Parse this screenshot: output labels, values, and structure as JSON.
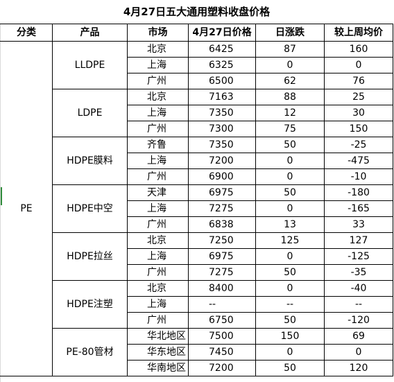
{
  "title": "4月27日五大通用塑料收盘价格",
  "headers": {
    "category": "分类",
    "product": "产品",
    "market": "市场",
    "price": "4月27日价格",
    "daily_change": "日涨跌",
    "weekly_change": "较上周均价"
  },
  "category": "PE",
  "groups": [
    {
      "product": "LLDPE",
      "rows": [
        {
          "market": "北京",
          "price": "6425",
          "daily": "87",
          "weekly": "160"
        },
        {
          "market": "上海",
          "price": "6325",
          "daily": "0",
          "weekly": "0"
        },
        {
          "market": "广州",
          "price": "6500",
          "daily": "62",
          "weekly": "76"
        }
      ]
    },
    {
      "product": "LDPE",
      "rows": [
        {
          "market": "北京",
          "price": "7163",
          "daily": "88",
          "weekly": "25"
        },
        {
          "market": "上海",
          "price": "7350",
          "daily": "12",
          "weekly": "30"
        },
        {
          "market": "广州",
          "price": "7300",
          "daily": "75",
          "weekly": "150"
        }
      ]
    },
    {
      "product": "HDPE膜料",
      "rows": [
        {
          "market": "齐鲁",
          "price": "7350",
          "daily": "50",
          "weekly": "-25"
        },
        {
          "market": "上海",
          "price": "7200",
          "daily": "0",
          "weekly": "-475"
        },
        {
          "market": "广州",
          "price": "6900",
          "daily": "0",
          "weekly": "-10"
        }
      ]
    },
    {
      "product": "HDPE中空",
      "rows": [
        {
          "market": "天津",
          "price": "6975",
          "daily": "50",
          "weekly": "-180"
        },
        {
          "market": "上海",
          "price": "7275",
          "daily": "0",
          "weekly": "-165"
        },
        {
          "market": "广州",
          "price": "6838",
          "daily": "13",
          "weekly": "33"
        }
      ]
    },
    {
      "product": "HDPE拉丝",
      "rows": [
        {
          "market": "北京",
          "price": "7250",
          "daily": "125",
          "weekly": "127"
        },
        {
          "market": "上海",
          "price": "6975",
          "daily": "0",
          "weekly": "-125"
        },
        {
          "market": "广州",
          "price": "7275",
          "daily": "50",
          "weekly": "-35"
        }
      ]
    },
    {
      "product": "HDPE注塑",
      "rows": [
        {
          "market": "北京",
          "price": "8400",
          "daily": "0",
          "weekly": "-40"
        },
        {
          "market": "上海",
          "price": "--",
          "daily": "--",
          "weekly": "--"
        },
        {
          "market": "广州",
          "price": "6750",
          "daily": "50",
          "weekly": "-120"
        }
      ]
    },
    {
      "product": "PE-80管材",
      "rows": [
        {
          "market": "华北地区",
          "price": "7500",
          "daily": "150",
          "weekly": "69"
        },
        {
          "market": "华东地区",
          "price": "7450",
          "daily": "0",
          "weekly": "0"
        },
        {
          "market": "华南地区",
          "price": "7200",
          "daily": "50",
          "weekly": "120"
        }
      ]
    }
  ]
}
